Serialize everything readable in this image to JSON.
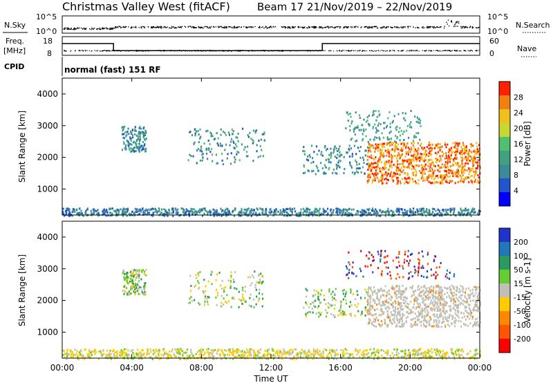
{
  "header": {
    "station": "Christmas Valley West (fitACF)",
    "beam_date": "Beam 17  21/Nov/2019 – 22/Nov/2019"
  },
  "noise_panel": {
    "left_label": "N.Sky",
    "right_label": "N.Search",
    "left_ticks": [
      "10^5",
      "10^0"
    ],
    "right_ticks": [
      "10^5",
      "10^0"
    ]
  },
  "freq_panel": {
    "left_label_line1": "Freq.",
    "left_label_line2": "[MHz]",
    "right_label": "Nave",
    "left_ticks": [
      "18",
      "8"
    ],
    "right_ticks": [
      "60",
      "0"
    ],
    "frequency_steps_mhz": [
      {
        "from_hour": 0,
        "to_hour": 2.95,
        "value": 14.3
      },
      {
        "from_hour": 2.95,
        "to_hour": 14.95,
        "value": 10.5
      },
      {
        "from_hour": 14.95,
        "to_hour": 24,
        "value": 14.3
      }
    ]
  },
  "cpid": {
    "label": "CPID",
    "mode": "normal (fast) 151 RF"
  },
  "colors": {
    "power_scale": [
      "#0000ff",
      "#2255cc",
      "#3a8a9a",
      "#40a080",
      "#4fc070",
      "#c8d830",
      "#f0c020",
      "#f08010",
      "#ff2000"
    ],
    "velocity_scale": [
      "#2233cc",
      "#2277bb",
      "#2a9a60",
      "#66cc33",
      "#c0c0b8",
      "#ffcc00",
      "#ff8800",
      "#ff5500",
      "#ff0000"
    ]
  },
  "chart_data": [
    {
      "type": "heatmap",
      "title": "Power",
      "ylabel": "Slant Range [km]",
      "xlabel": "",
      "ylim": [
        180,
        4500
      ],
      "xlim": [
        0,
        24
      ],
      "y_ticks": [
        "1000",
        "2000",
        "3000",
        "4000"
      ],
      "colorbar": {
        "label": "Power [dB]",
        "ticks": [
          "28",
          "24",
          "20",
          "16",
          "12",
          "8",
          "4"
        ],
        "range": [
          0,
          32
        ]
      },
      "echo_regions": [
        {
          "name": "ground scatter band",
          "x": [
            0,
            24
          ],
          "y": [
            180,
            420
          ],
          "typical_value": 8
        },
        {
          "name": "patch A",
          "x": [
            3.4,
            4.8
          ],
          "y": [
            2200,
            3000
          ],
          "typical_value": 10
        },
        {
          "name": "patch B",
          "x": [
            7.2,
            11.6
          ],
          "y": [
            1800,
            2950
          ],
          "typical_value": 10
        },
        {
          "name": "patch C",
          "x": [
            13.8,
            17.6
          ],
          "y": [
            1500,
            2400
          ],
          "typical_value": 10
        },
        {
          "name": "patch D",
          "x": [
            16.2,
            20.6
          ],
          "y": [
            2500,
            3500
          ],
          "typical_value": 12
        },
        {
          "name": "strong echo region",
          "x": [
            17.5,
            24
          ],
          "y": [
            1200,
            2500
          ],
          "typical_value": 28
        }
      ]
    },
    {
      "type": "heatmap",
      "title": "Velocity",
      "ylabel": "Slant Range [km]",
      "xlabel": "Time UT",
      "ylim": [
        180,
        4500
      ],
      "xlim": [
        0,
        24
      ],
      "x_ticks": [
        "00:00",
        "04:00",
        "08:00",
        "12:00",
        "16:00",
        "20:00",
        "00:00"
      ],
      "y_ticks": [
        "1000",
        "2000",
        "3000",
        "4000"
      ],
      "colorbar": {
        "label": "Velocity [m s-1]",
        "ticks": [
          "200",
          "100",
          "50",
          "15",
          "-15",
          "-50",
          "-100",
          "-200"
        ]
      },
      "echo_regions": [
        {
          "name": "near range band",
          "x": [
            0,
            24
          ],
          "y": [
            180,
            500
          ],
          "typical_value": -20
        },
        {
          "name": "patch A",
          "x": [
            3.4,
            4.8
          ],
          "y": [
            2200,
            3000
          ],
          "typical_value": 0
        },
        {
          "name": "patch B",
          "x": [
            7.2,
            11.6
          ],
          "y": [
            1800,
            2950
          ],
          "typical_value": 0
        },
        {
          "name": "patch C",
          "x": [
            13.8,
            17.6
          ],
          "y": [
            1500,
            2400
          ],
          "typical_value": 40
        },
        {
          "name": "ground scatter region",
          "x": [
            17.5,
            24
          ],
          "y": [
            1200,
            2500
          ],
          "typical_value": 0
        },
        {
          "name": "high range irregular",
          "x": [
            16.2,
            22.6
          ],
          "y": [
            2700,
            3600
          ],
          "typical_value": -150
        }
      ]
    }
  ]
}
